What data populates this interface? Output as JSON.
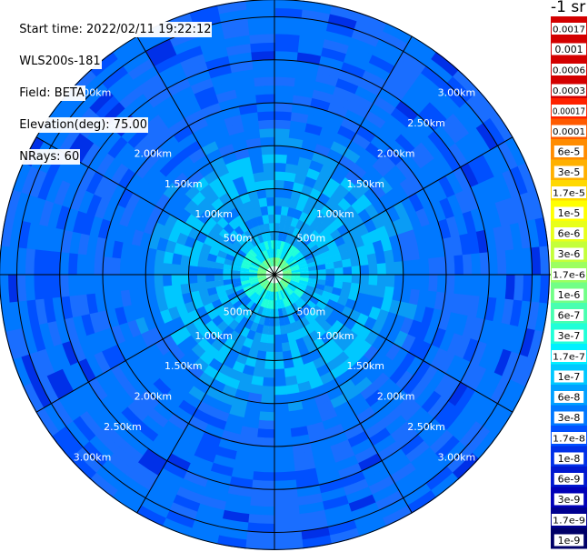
{
  "header": {
    "start_time": "Start time: 2022/02/11 19:22:12",
    "instrument": "WLS200s-181",
    "field": "Field: BETA",
    "elevation": "Elevation(deg): 75.00",
    "nrays": "NRays: 60",
    "unit": "-1 sr"
  },
  "chart_data": {
    "type": "heatmap",
    "projection": "polar-ppi",
    "field": "BETA",
    "elevation_deg": 75.0,
    "n_rays": 60,
    "max_range_km": 3.2,
    "range_rings_km": [
      0.5,
      1.0,
      1.5,
      2.0,
      2.5,
      3.0
    ],
    "ring_labels": [
      "500m",
      "1.00km",
      "1.50km",
      "2.00km",
      "2.50km",
      "3.00km"
    ],
    "azimuth_lines_deg": [
      0,
      30,
      60,
      90,
      120,
      150,
      180,
      210,
      240,
      270,
      300,
      330
    ],
    "approx_level_by_range": [
      {
        "range_km": 0.1,
        "value": 0.00017
      },
      {
        "range_km": 0.3,
        "value": 3e-07
      },
      {
        "range_km": 0.7,
        "value": 6e-08
      },
      {
        "range_km": 1.2,
        "value": 1e-07
      },
      {
        "range_km": 1.8,
        "value": 3e-08
      },
      {
        "range_km": 2.5,
        "value": 1.7e-08
      },
      {
        "range_km": 3.1,
        "value": 1e-08
      }
    ],
    "colorbar": {
      "labels": [
        "0.0017",
        "0.001",
        "0.0006",
        "0.0003",
        "0.00017",
        "0.0001",
        "6e-5",
        "3e-5",
        "1.7e-5",
        "1e-5",
        "6e-6",
        "3e-6",
        "1.7e-6",
        "1e-6",
        "6e-7",
        "3e-7",
        "1.7e-7",
        "1e-7",
        "6e-8",
        "3e-8",
        "1.7e-8",
        "1e-8",
        "6e-9",
        "3e-9",
        "1.7e-9",
        "1e-9"
      ],
      "colors": [
        "#d40000",
        "#d40000",
        "#d40000",
        "#d40000",
        "#ff2200",
        "#ff5a00",
        "#ff8c00",
        "#ffb000",
        "#ffd800",
        "#ffff00",
        "#e8ff1a",
        "#c4ff3a",
        "#9cff60",
        "#72ff86",
        "#48ffb0",
        "#20ffd8",
        "#00f0ff",
        "#00c8ff",
        "#00a0ff",
        "#0078ff",
        "#0050ff",
        "#0030e8",
        "#0018d0",
        "#0000b8",
        "#000090",
        "#000068"
      ]
    }
  }
}
